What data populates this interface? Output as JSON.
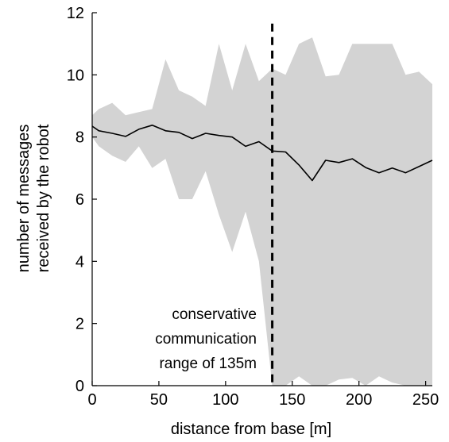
{
  "chart_data": {
    "type": "line",
    "title": "",
    "xlabel": "distance from base [m]",
    "ylabel_line1": "number of messages",
    "ylabel_line2": "received by the robot",
    "xlim": [
      0,
      255
    ],
    "ylim": [
      0,
      12
    ],
    "xticks": [
      0,
      50,
      100,
      150,
      200,
      250
    ],
    "yticks": [
      0,
      2,
      4,
      6,
      8,
      10,
      12
    ],
    "grid": false,
    "legend": "none",
    "colors": {
      "band": "#d3d3d3",
      "line": "#000000",
      "axis": "#000000"
    },
    "series": [
      {
        "kind": "mean",
        "x": [
          0,
          5,
          15,
          25,
          35,
          45,
          55,
          65,
          75,
          85,
          95,
          105,
          115,
          125,
          135,
          145,
          155,
          165,
          175,
          185,
          195,
          205,
          215,
          225,
          235,
          245,
          255
        ],
        "y": [
          8.35,
          8.2,
          8.12,
          8.02,
          8.25,
          8.38,
          8.2,
          8.15,
          7.95,
          8.12,
          8.05,
          8.0,
          7.7,
          7.85,
          7.55,
          7.52,
          7.1,
          6.6,
          7.25,
          7.18,
          7.3,
          7.02,
          6.85,
          7.0,
          6.85,
          7.05,
          7.25
        ]
      },
      {
        "kind": "range",
        "x": [
          0,
          5,
          15,
          25,
          35,
          45,
          55,
          65,
          75,
          85,
          95,
          105,
          115,
          125,
          135,
          145,
          155,
          165,
          175,
          185,
          195,
          205,
          215,
          225,
          235,
          245,
          255
        ],
        "upper": [
          8.7,
          8.9,
          9.1,
          8.7,
          8.8,
          8.9,
          10.5,
          9.5,
          9.3,
          9.0,
          11.0,
          9.5,
          11.0,
          9.8,
          10.2,
          10.0,
          11.0,
          11.2,
          9.95,
          10.0,
          11.0,
          11.0,
          11.0,
          11.0,
          10.0,
          10.1,
          9.7
        ],
        "lower": [
          8.0,
          7.7,
          7.4,
          7.2,
          7.7,
          7.0,
          7.3,
          6.0,
          6.0,
          6.9,
          5.5,
          4.3,
          5.6,
          4.0,
          0.0,
          0.0,
          0.3,
          0.0,
          0.0,
          0.2,
          0.25,
          0.0,
          0.3,
          0.1,
          0.0,
          0.0,
          0.0
        ]
      }
    ],
    "vline": {
      "x": 135,
      "annotation": [
        "conservative",
        "communication",
        "range of 135m"
      ]
    }
  }
}
